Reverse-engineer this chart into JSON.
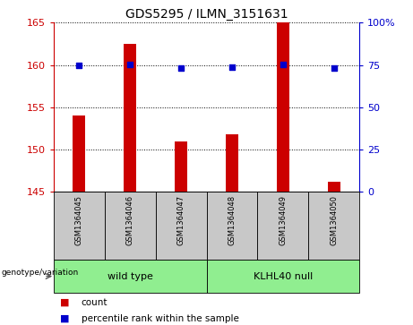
{
  "title": "GDS5295 / ILMN_3151631",
  "samples": [
    "GSM1364045",
    "GSM1364046",
    "GSM1364047",
    "GSM1364048",
    "GSM1364049",
    "GSM1364050"
  ],
  "counts": [
    154.0,
    162.5,
    151.0,
    151.8,
    165.0,
    146.2
  ],
  "percentiles": [
    75.0,
    75.5,
    73.0,
    73.5,
    75.5,
    73.0
  ],
  "ylim_left": [
    145,
    165
  ],
  "ylim_right": [
    0,
    100
  ],
  "yticks_left": [
    145,
    150,
    155,
    160,
    165
  ],
  "yticks_right": [
    0,
    25,
    50,
    75,
    100
  ],
  "ytick_labels_right": [
    "0",
    "25",
    "50",
    "75",
    "100%"
  ],
  "bar_color": "#cc0000",
  "dot_color": "#0000cc",
  "group1_label": "wild type",
  "group2_label": "KLHL40 null",
  "group1_indices": [
    0,
    1,
    2
  ],
  "group2_indices": [
    3,
    4,
    5
  ],
  "group_color": "#90ee90",
  "sample_box_color": "#c8c8c8",
  "legend_count_label": "count",
  "legend_percentile_label": "percentile rank within the sample",
  "genotype_label": "genotype/variation",
  "bar_width": 0.25
}
